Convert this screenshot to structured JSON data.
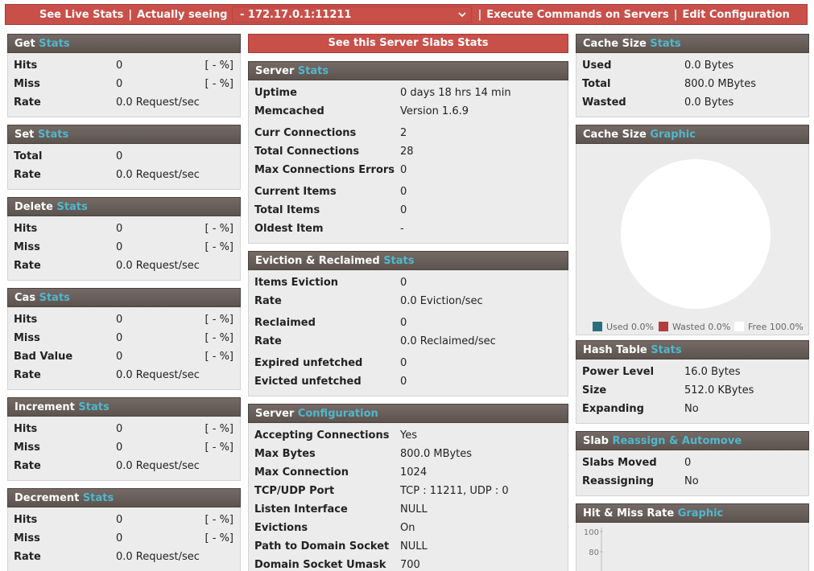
{
  "topbar": {
    "live": "See Live Stats",
    "sep1": "|",
    "seeing": "Actually seeing",
    "server": " - 172.17.0.1:11211",
    "sep2": "|",
    "execute": "Execute Commands on Servers",
    "sep3": "|",
    "edit": "Edit Configuration"
  },
  "left": [
    {
      "title": "Get",
      "accent": "Stats",
      "groups": [
        [
          [
            "Hits",
            "0",
            "[ - %]"
          ],
          [
            "Miss",
            "0",
            "[ - %]"
          ],
          [
            "Rate",
            "0.0 Request/sec"
          ]
        ]
      ]
    },
    {
      "title": "Set",
      "accent": "Stats",
      "groups": [
        [
          [
            "Total",
            "0"
          ],
          [
            "Rate",
            "0.0 Request/sec"
          ]
        ]
      ]
    },
    {
      "title": "Delete",
      "accent": "Stats",
      "groups": [
        [
          [
            "Hits",
            "0",
            "[ - %]"
          ],
          [
            "Miss",
            "0",
            "[ - %]"
          ],
          [
            "Rate",
            "0.0 Request/sec"
          ]
        ]
      ]
    },
    {
      "title": "Cas",
      "accent": "Stats",
      "groups": [
        [
          [
            "Hits",
            "0",
            "[ - %]"
          ],
          [
            "Miss",
            "0",
            "[ - %]"
          ],
          [
            "Bad Value",
            "0",
            "[ - %]"
          ],
          [
            "Rate",
            "0.0 Request/sec"
          ]
        ]
      ]
    },
    {
      "title": "Increment",
      "accent": "Stats",
      "groups": [
        [
          [
            "Hits",
            "0",
            "[ - %]"
          ],
          [
            "Miss",
            "0",
            "[ - %]"
          ],
          [
            "Rate",
            "0.0 Request/sec"
          ]
        ]
      ]
    },
    {
      "title": "Decrement",
      "accent": "Stats",
      "groups": [
        [
          [
            "Hits",
            "0",
            "[ - %]"
          ],
          [
            "Miss",
            "0",
            "[ - %]"
          ],
          [
            "Rate",
            "0.0 Request/sec"
          ]
        ]
      ]
    }
  ],
  "middle": {
    "button": "See this Server Slabs Stats",
    "panels": [
      {
        "title": "Server",
        "accent": "Stats",
        "groups": [
          [
            [
              "Uptime",
              "0 days 18 hrs 14 min"
            ],
            [
              "Memcached",
              "Version 1.6.9"
            ]
          ],
          [
            [
              "Curr Connections",
              "2"
            ],
            [
              "Total Connections",
              "28"
            ],
            [
              "Max Connections Errors",
              "0"
            ]
          ],
          [
            [
              "Current Items",
              "0"
            ],
            [
              "Total Items",
              "0"
            ],
            [
              "Oldest Item",
              "-"
            ]
          ]
        ]
      },
      {
        "title": "Eviction & Reclaimed",
        "accent": "Stats",
        "groups": [
          [
            [
              "Items Eviction",
              "0"
            ],
            [
              "Rate",
              "0.0 Eviction/sec"
            ]
          ],
          [
            [
              "Reclaimed",
              "0"
            ],
            [
              "Rate",
              "0.0 Reclaimed/sec"
            ]
          ],
          [
            [
              "Expired unfetched",
              "0"
            ],
            [
              "Evicted unfetched",
              "0"
            ]
          ]
        ]
      },
      {
        "title": "Server",
        "accent": "Configuration",
        "groups": [
          [
            [
              "Accepting Connections",
              "Yes"
            ],
            [
              "Max Bytes",
              "800.0 MBytes"
            ],
            [
              "Max Connection",
              "1024"
            ],
            [
              "TCP/UDP Port",
              "TCP : 11211, UDP : 0"
            ],
            [
              "Listen Interface",
              "NULL"
            ],
            [
              "Evictions",
              "On"
            ],
            [
              "Path to Domain Socket",
              "NULL"
            ],
            [
              "Domain Socket Umask",
              "700"
            ]
          ]
        ]
      }
    ]
  },
  "right": [
    {
      "title": "Cache Size",
      "accent": "Stats",
      "groups": [
        [
          [
            "Used",
            "0.0 Bytes"
          ],
          [
            "Total",
            "800.0 MBytes"
          ],
          [
            "Wasted",
            "0.0 Bytes"
          ]
        ]
      ]
    },
    {
      "title": "Cache Size",
      "accent": "Graphic",
      "legend": [
        {
          "label": "Used 0.0%",
          "color": "#2b6e7e"
        },
        {
          "label": "Wasted 0.0%",
          "color": "#b23e3e"
        },
        {
          "label": "Free 100.0%",
          "color": "#ffffff"
        }
      ]
    },
    {
      "title": "Hash Table",
      "accent": "Stats",
      "groups": [
        [
          [
            "Power Level",
            "16.0 Bytes"
          ],
          [
            "Size",
            "512.0 KBytes"
          ],
          [
            "Expanding",
            "No"
          ]
        ]
      ]
    },
    {
      "title": "Slab",
      "accent": "Reassign & Automove",
      "groups": [
        [
          [
            "Slabs Moved",
            "0"
          ],
          [
            "Reassigning",
            "No"
          ]
        ]
      ]
    },
    {
      "title": "Hit & Miss Rate",
      "accent": "Graphic",
      "axis_labels": [
        "100",
        "80"
      ]
    }
  ]
}
